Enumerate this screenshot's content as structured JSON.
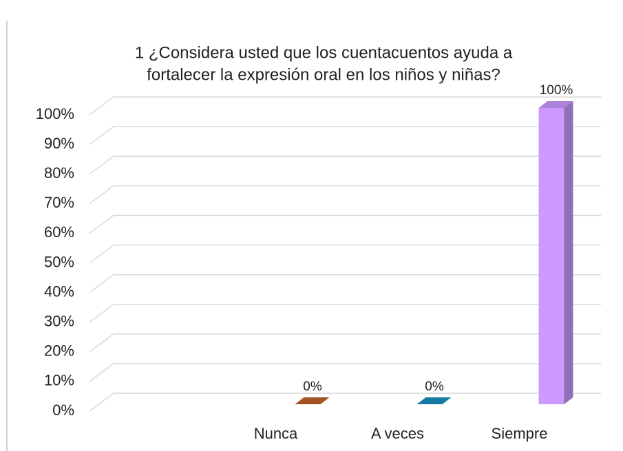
{
  "chart_data": {
    "type": "bar3d",
    "title": [
      "1  ¿Considera usted que los cuentacuentos ayuda a",
      "fortalecer la expresión oral en los niños y niñas?"
    ],
    "categories": [
      null,
      "Nunca",
      "A veces",
      "Siempre"
    ],
    "values": [
      null,
      0,
      0,
      100
    ],
    "value_labels": [
      null,
      "0%",
      "0%",
      "100%"
    ],
    "colors": [
      null,
      "#c0602a",
      "#1a8fc0",
      "#cc99ff"
    ],
    "ylim": [
      0,
      100
    ],
    "yticks": [
      {
        "value": 0,
        "label": "0%"
      },
      {
        "value": 10,
        "label": "10%"
      },
      {
        "value": 20,
        "label": "20%"
      },
      {
        "value": 30,
        "label": "30%"
      },
      {
        "value": 40,
        "label": "40%"
      },
      {
        "value": 50,
        "label": "50%"
      },
      {
        "value": 60,
        "label": "60%"
      },
      {
        "value": 70,
        "label": "70%"
      },
      {
        "value": 80,
        "label": "80%"
      },
      {
        "value": 90,
        "label": "90%"
      },
      {
        "value": 100,
        "label": "100%"
      }
    ],
    "grid": true
  }
}
